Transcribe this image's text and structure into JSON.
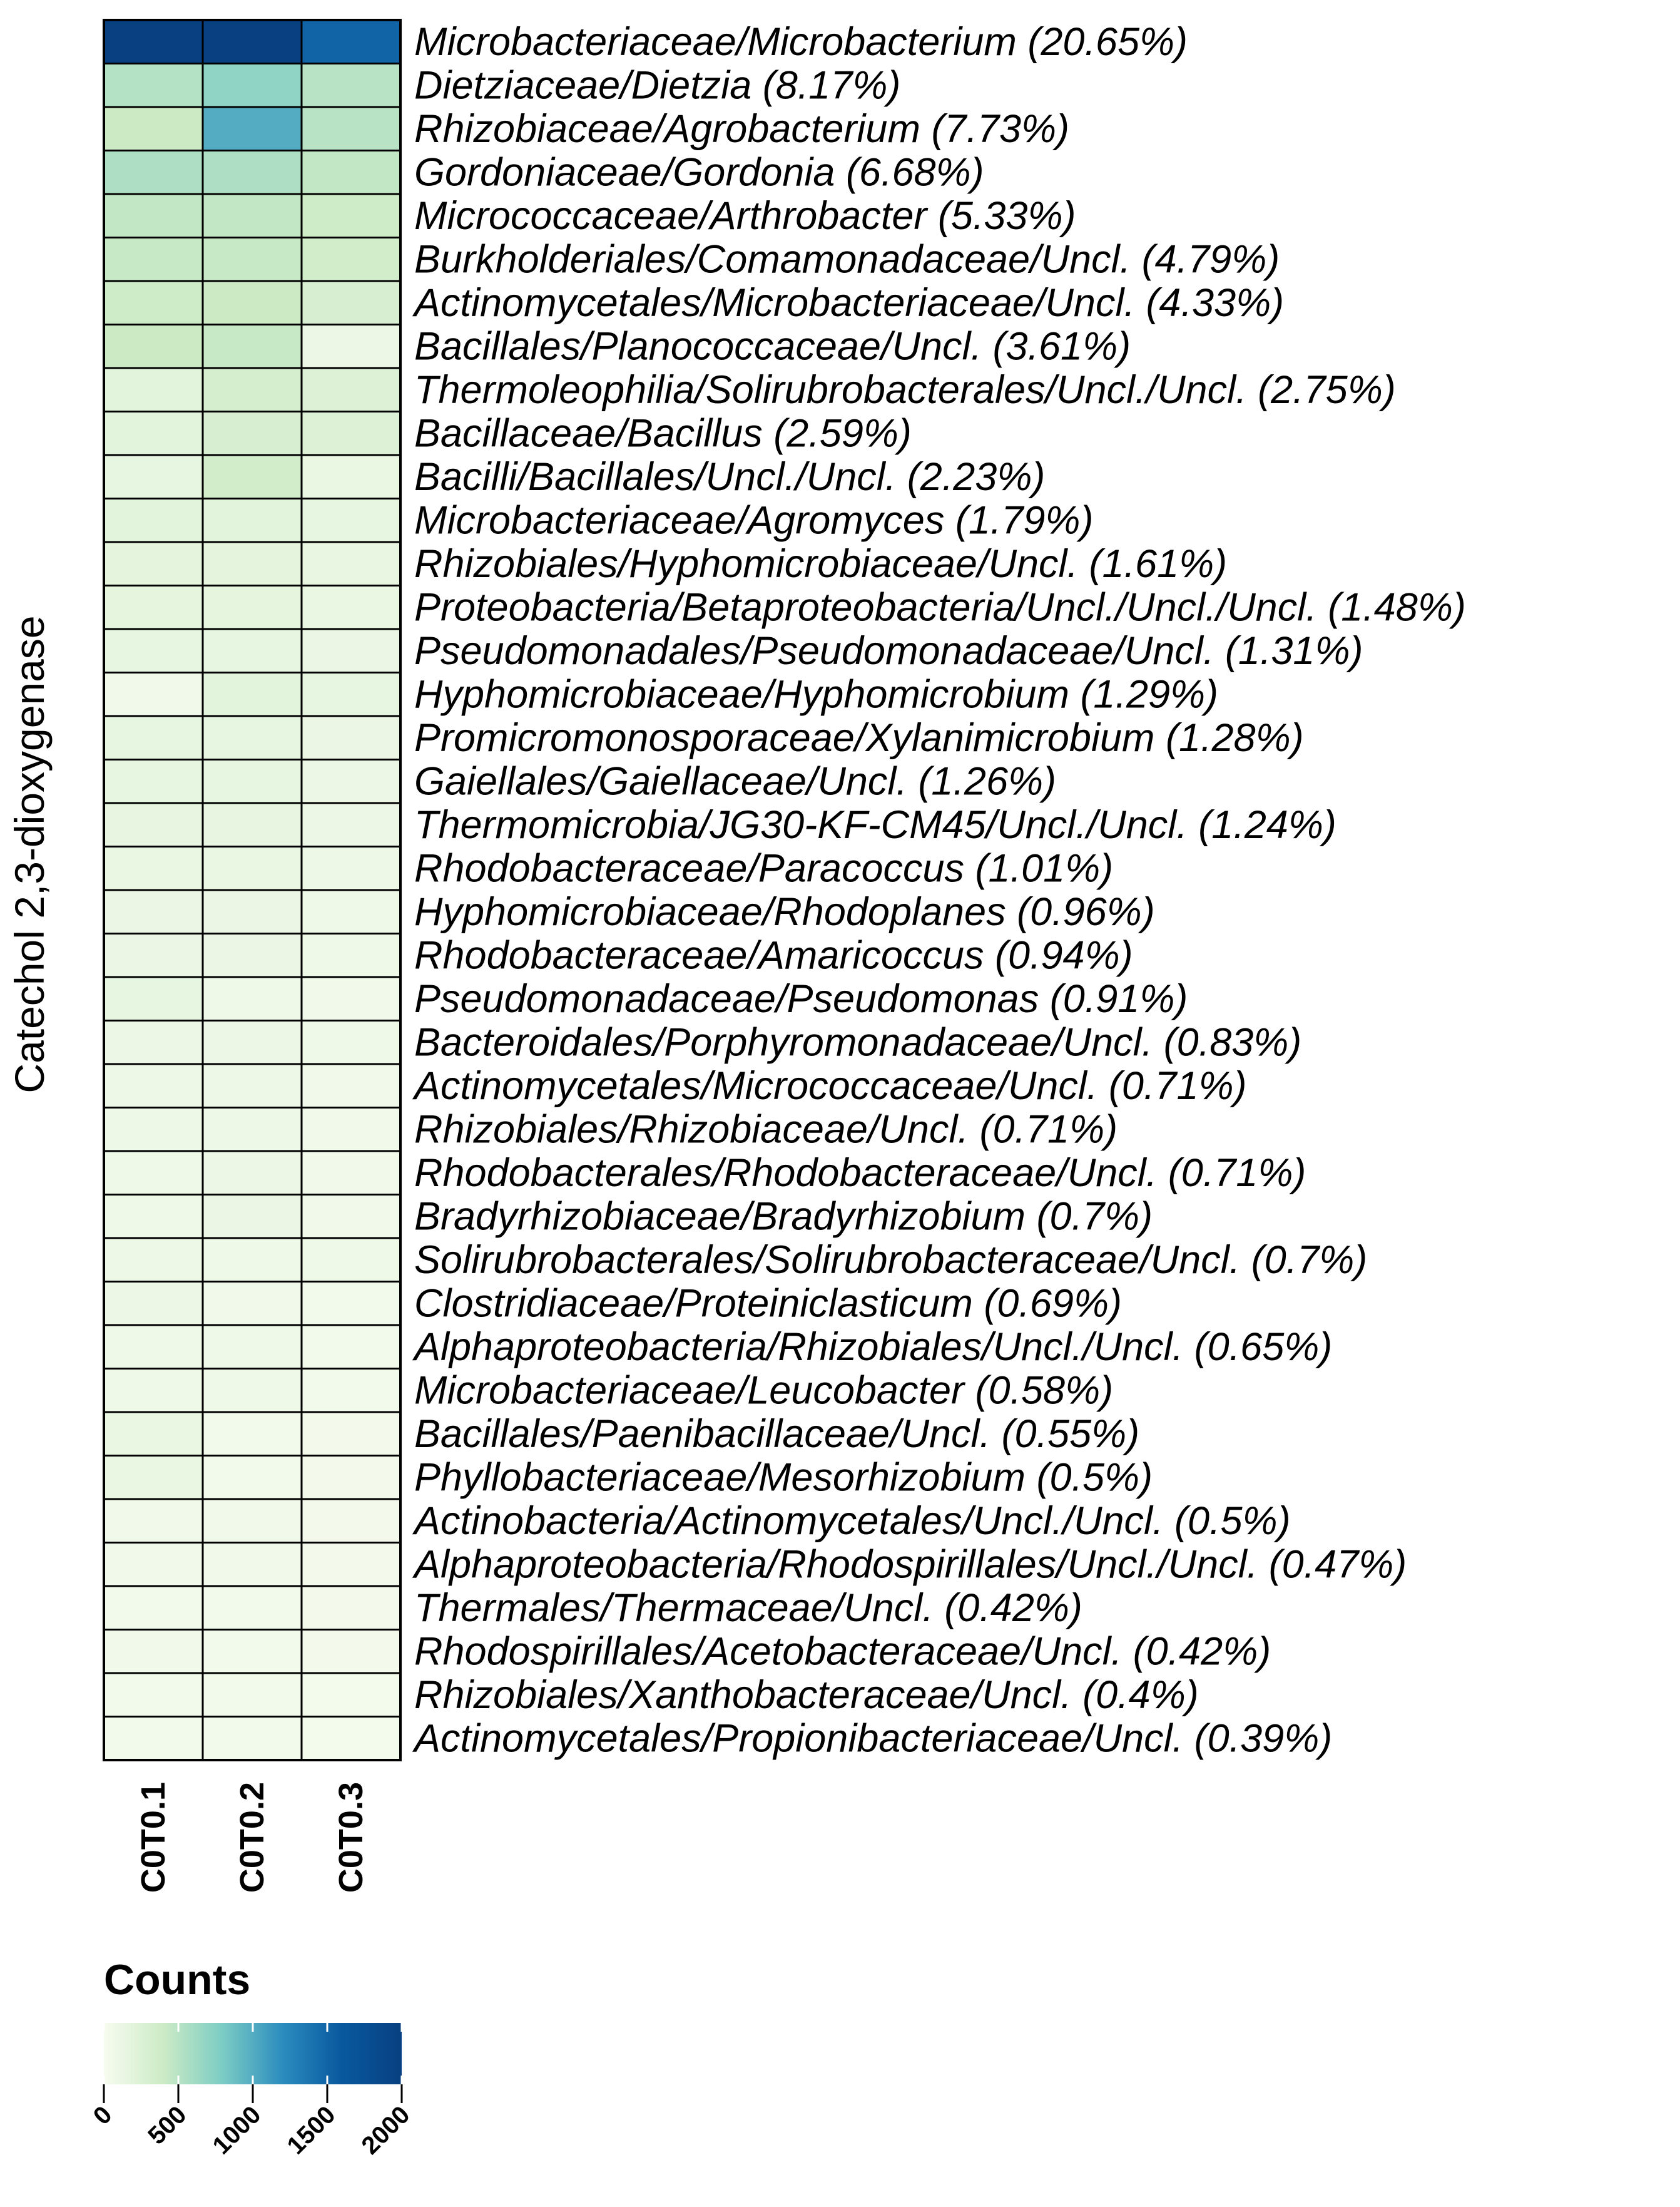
{
  "chart_data": {
    "type": "heatmap",
    "ylabel": "Catechol 2,3-dioxygenase",
    "columns": [
      "C0T0.1",
      "C0T0.2",
      "C0T0.3"
    ],
    "rows": [
      {
        "label": "Microbacteriaceae/Microbacterium (20.65%)",
        "values": [
          2000,
          2000,
          1500
        ]
      },
      {
        "label": "Dietziaceae/Dietzia (8.17%)",
        "values": [
          520,
          700,
          500
        ]
      },
      {
        "label": "Rhizobiaceae/Agrobacterium (7.73%)",
        "values": [
          400,
          1000,
          500
        ]
      },
      {
        "label": "Gordoniaceae/Gordonia (6.68%)",
        "values": [
          550,
          550,
          450
        ]
      },
      {
        "label": "Micrococcaceae/Arthrobacter (5.33%)",
        "values": [
          450,
          450,
          380
        ]
      },
      {
        "label": "Burkholderiales/Comamonadaceae/Uncl. (4.79%)",
        "values": [
          420,
          420,
          350
        ]
      },
      {
        "label": "Actinomycetales/Microbacteriaceae/Uncl. (4.33%)",
        "values": [
          380,
          400,
          300
        ]
      },
      {
        "label": "Bacillales/Planococcaceae/Uncl. (3.61%)",
        "values": [
          400,
          420,
          100
        ]
      },
      {
        "label": "Thermoleophilia/Solirubrobacterales/Uncl./Uncl. (2.75%)",
        "values": [
          200,
          320,
          250
        ]
      },
      {
        "label": "Bacillaceae/Bacillus (2.59%)",
        "values": [
          200,
          300,
          250
        ]
      },
      {
        "label": "Bacilli/Bacillales/Uncl./Uncl. (2.23%)",
        "values": [
          150,
          350,
          120
        ]
      },
      {
        "label": "Microbacteriaceae/Agromyces (1.79%)",
        "values": [
          200,
          200,
          150
        ]
      },
      {
        "label": "Rhizobiales/Hyphomicrobiaceae/Uncl. (1.61%)",
        "values": [
          180,
          180,
          130
        ]
      },
      {
        "label": "Proteobacteria/Betaproteobacteria/Uncl./Uncl./Uncl. (1.48%)",
        "values": [
          170,
          170,
          120
        ]
      },
      {
        "label": "Pseudomonadales/Pseudomonadaceae/Uncl. (1.31%)",
        "values": [
          150,
          150,
          110
        ]
      },
      {
        "label": "Hyphomicrobiaceae/Hyphomicrobium (1.29%)",
        "values": [
          60,
          200,
          150
        ]
      },
      {
        "label": "Promicromonosporaceae/Xylanimicrobium (1.28%)",
        "values": [
          150,
          150,
          110
        ]
      },
      {
        "label": "Gaiellales/Gaiellaceae/Uncl. (1.26%)",
        "values": [
          150,
          150,
          100
        ]
      },
      {
        "label": "Thermomicrobia/JG30-KF-CM45/Uncl./Uncl. (1.24%)",
        "values": [
          140,
          140,
          100
        ]
      },
      {
        "label": "Rhodobacteraceae/Paracoccus (1.01%)",
        "values": [
          120,
          120,
          90
        ]
      },
      {
        "label": "Hyphomicrobiaceae/Rhodoplanes (0.96%)",
        "values": [
          110,
          110,
          80
        ]
      },
      {
        "label": "Rhodobacteraceae/Amaricoccus (0.94%)",
        "values": [
          110,
          110,
          80
        ]
      },
      {
        "label": "Pseudomonadaceae/Pseudomonas (0.91%)",
        "values": [
          150,
          80,
          60
        ]
      },
      {
        "label": "Bacteroidales/Porphyromonadaceae/Uncl. (0.83%)",
        "values": [
          100,
          100,
          70
        ]
      },
      {
        "label": "Actinomycetales/Micrococcaceae/Uncl. (0.71%)",
        "values": [
          90,
          90,
          60
        ]
      },
      {
        "label": "Rhizobiales/Rhizobiaceae/Uncl. (0.71%)",
        "values": [
          90,
          90,
          60
        ]
      },
      {
        "label": "Rhodobacterales/Rhodobacteraceae/Uncl. (0.71%)",
        "values": [
          80,
          100,
          60
        ]
      },
      {
        "label": "Bradyrhizobiaceae/Bradyrhizobium (0.7%)",
        "values": [
          80,
          110,
          60
        ]
      },
      {
        "label": "Solirubrobacterales/Solirubrobacteraceae/Uncl. (0.7%)",
        "values": [
          90,
          70,
          70
        ]
      },
      {
        "label": "Clostridiaceae/Proteiniclasticum (0.69%)",
        "values": [
          100,
          60,
          50
        ]
      },
      {
        "label": "Alphaproteobacteria/Rhizobiales/Uncl./Uncl. (0.65%)",
        "values": [
          80,
          80,
          50
        ]
      },
      {
        "label": "Microbacteriaceae/Leucobacter (0.58%)",
        "values": [
          70,
          70,
          50
        ]
      },
      {
        "label": "Bacillales/Paenibacillaceae/Uncl. (0.55%)",
        "values": [
          120,
          50,
          40
        ]
      },
      {
        "label": "Phyllobacteriaceae/Mesorhizobium (0.5%)",
        "values": [
          120,
          50,
          40
        ]
      },
      {
        "label": "Actinobacteria/Actinomycetales/Uncl./Uncl. (0.5%)",
        "values": [
          60,
          60,
          40
        ]
      },
      {
        "label": "Alphaproteobacteria/Rhodospirillales/Uncl./Uncl. (0.47%)",
        "values": [
          60,
          60,
          40
        ]
      },
      {
        "label": "Thermales/Thermaceae/Uncl. (0.42%)",
        "values": [
          50,
          50,
          40
        ]
      },
      {
        "label": "Rhodospirillales/Acetobacteraceae/Uncl. (0.42%)",
        "values": [
          60,
          50,
          40
        ]
      },
      {
        "label": "Rhizobiales/Xanthobacteraceae/Uncl. (0.4%)",
        "values": [
          50,
          50,
          35
        ]
      },
      {
        "label": "Actinomycetales/Propionibacteriaceae/Uncl. (0.39%)",
        "values": [
          50,
          50,
          35
        ]
      }
    ],
    "legend": {
      "title": "Counts",
      "min": 0,
      "max": 2000,
      "ticks": [
        0,
        500,
        1000,
        1500,
        2000
      ],
      "colors": [
        "#f7fcf0",
        "#ccebc5",
        "#7bccc4",
        "#2b8cbe",
        "#08589e",
        "#084081"
      ]
    }
  }
}
